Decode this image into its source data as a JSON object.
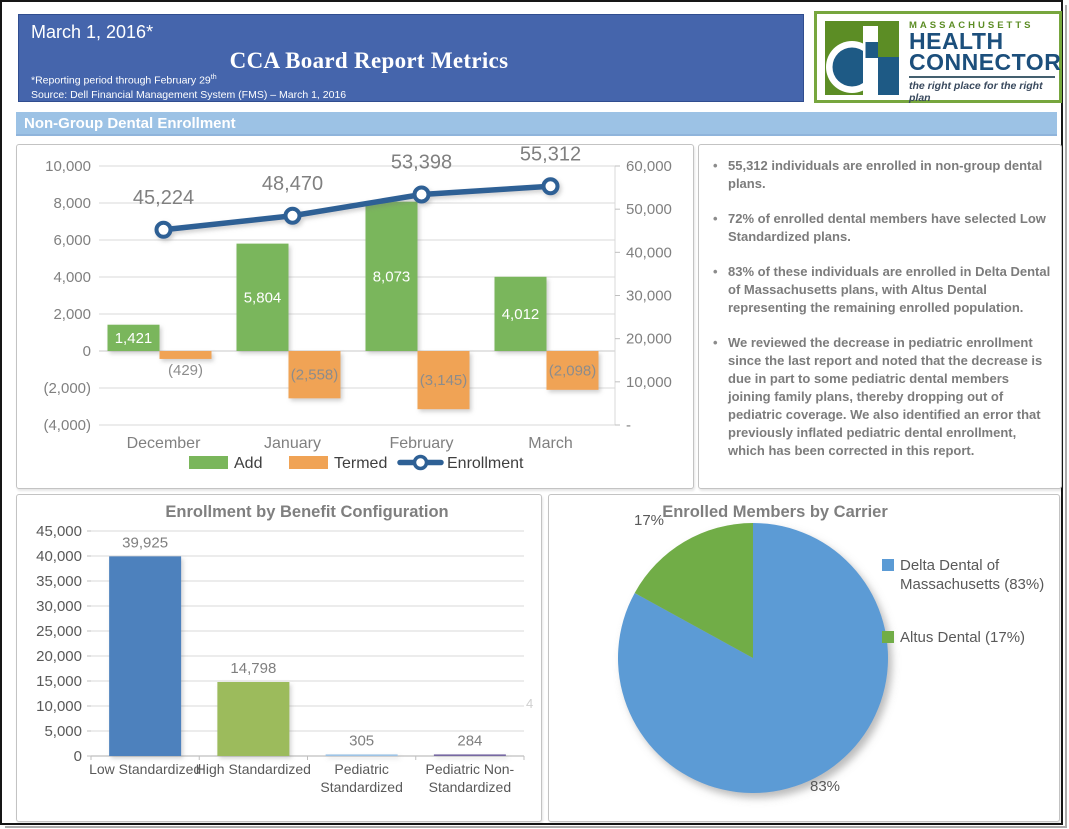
{
  "page": {
    "number": "4"
  },
  "header": {
    "date": "March 1, 2016*",
    "title": "CCA Board Report Metrics",
    "note1_main": "*Reporting period through February 29",
    "note1_sup": "th",
    "note2": "Source: Dell Financial Management System (FMS) – March 1, 2016",
    "bg_color": "#4565AC"
  },
  "logo": {
    "brand_top": "MASSACHUSETTS",
    "brand_line1": "HEALTH",
    "brand_line2": "CONNECTOR",
    "tagline": "the right place for the right plan",
    "green": "#5C8D25",
    "blue": "#1E5A85"
  },
  "section": {
    "title": "Non-Group Dental Enrollment",
    "bg_color": "#9CC2E5"
  },
  "bullets": [
    "55,312 individuals are enrolled in non-group dental plans.",
    "72% of enrolled dental members have selected Low Standardized plans.",
    "83% of these individuals are enrolled in Delta Dental of Massachusetts plans, with Altus Dental representing the remaining enrolled population.",
    "We reviewed the decrease in pediatric enrollment since the last report and noted that the decrease is due in part to some pediatric dental members joining family plans, thereby dropping out of pediatric coverage.  We also identified an error that previously inflated pediatric dental enrollment, which has been corrected in this report."
  ],
  "chart_data": [
    {
      "type": "combo",
      "title": "",
      "categories": [
        "December",
        "January",
        "February",
        "March"
      ],
      "series": [
        {
          "name": "Add",
          "type": "bar",
          "color": "#7AB65B",
          "values": [
            1421,
            5804,
            8073,
            4012
          ],
          "labels": [
            "1,421",
            "5,804",
            "8,073",
            "4,012"
          ]
        },
        {
          "name": "Termed",
          "type": "bar",
          "color": "#F0A355",
          "values": [
            -429,
            -2558,
            -3145,
            -2098
          ],
          "labels": [
            "(429)",
            "(2,558)",
            "(3,145)",
            "(2,098)"
          ]
        },
        {
          "name": "Enrollment",
          "type": "line",
          "axis": "secondary",
          "color": "#2E6095",
          "values": [
            45224,
            48470,
            53398,
            55312
          ],
          "labels": [
            "45,224",
            "48,470",
            "53,398",
            "55,312"
          ]
        }
      ],
      "primary_axis": {
        "min": -4000,
        "max": 10000,
        "ticks": [
          "10,000",
          "8,000",
          "6,000",
          "4,000",
          "2,000",
          "0",
          "(2,000)",
          "(4,000)"
        ]
      },
      "secondary_axis": {
        "min": 0,
        "max": 60000,
        "ticks": [
          "60,000",
          "50,000",
          "40,000",
          "30,000",
          "20,000",
          "10,000",
          "-"
        ]
      },
      "legend_position": "bottom",
      "grid": true
    },
    {
      "type": "bar",
      "title": "Enrollment by Benefit Configuration",
      "categories": [
        "Low Standardized",
        "High Standardized",
        "Pediatric Standardized",
        "Pediatric Non-Standardized"
      ],
      "category_lines": [
        [
          "Low Standardized"
        ],
        [
          "High Standardized"
        ],
        [
          "Pediatric",
          "Standardized"
        ],
        [
          "Pediatric Non-",
          "Standardized"
        ]
      ],
      "values": [
        39925,
        14798,
        305,
        284
      ],
      "labels": [
        "39,925",
        "14,798",
        "305",
        "284"
      ],
      "colors": [
        "#4E81BD",
        "#9CBB5B",
        "#9DC3E6",
        "#7667A2"
      ],
      "ylim": [
        0,
        45000
      ],
      "yticks": [
        "0",
        "5,000",
        "10,000",
        "15,000",
        "20,000",
        "25,000",
        "30,000",
        "35,000",
        "40,000",
        "45,000"
      ],
      "grid": true
    },
    {
      "type": "pie",
      "title": "Enrolled Members by Carrier",
      "slices": [
        {
          "name": "Delta Dental of Massachusetts",
          "pct": 83,
          "color": "#5B9BD5",
          "label": "83%",
          "legend_lines": [
            "Delta Dental of",
            "Massachusetts (83%)"
          ]
        },
        {
          "name": "Altus Dental",
          "pct": 17,
          "color": "#71AD47",
          "label": "17%",
          "legend_lines": [
            "Altus Dental (17%)"
          ]
        }
      ],
      "legend_position": "right"
    }
  ]
}
